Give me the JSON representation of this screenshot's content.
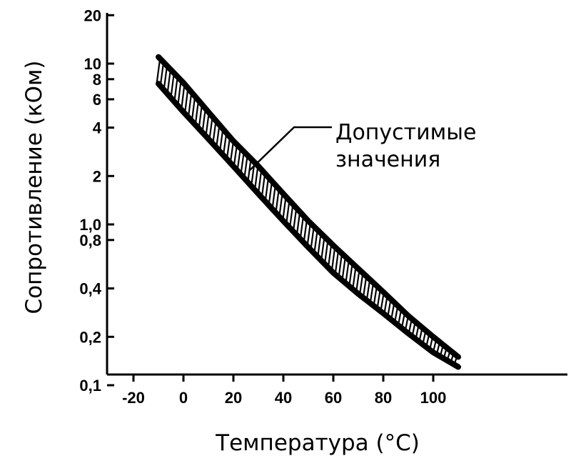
{
  "chart_data": {
    "type": "line",
    "title": "",
    "xlabel": "Температура (°C)",
    "ylabel": "Сопротивление (кОм)",
    "x_ticks": [
      "-20",
      "0",
      "20",
      "40",
      "60",
      "80",
      "100"
    ],
    "y_ticks": [
      "0,1",
      "0,2",
      "0,4",
      "0,8",
      "1,0",
      "2",
      "4",
      "6",
      "8",
      "10",
      "20"
    ],
    "y_scale": "log",
    "xlim": [
      -29,
      152
    ],
    "ylim": [
      0.1,
      20
    ],
    "grid": false,
    "annotation": "Допустимые значения",
    "series": [
      {
        "x": [
          -10,
          0,
          10,
          20,
          30,
          40,
          50,
          60,
          70,
          80,
          90,
          100,
          110
        ],
        "y": [
          11,
          7.6,
          5.0,
          3.3,
          2.3,
          1.55,
          1.05,
          0.74,
          0.53,
          0.38,
          0.27,
          0.2,
          0.15
        ]
      },
      {
        "x": [
          -10,
          0,
          10,
          20,
          30,
          40,
          50,
          60,
          70,
          80,
          90,
          100,
          110
        ],
        "y": [
          7.5,
          5.0,
          3.4,
          2.3,
          1.55,
          1.05,
          0.72,
          0.5,
          0.37,
          0.28,
          0.21,
          0.16,
          0.13
        ]
      }
    ]
  }
}
